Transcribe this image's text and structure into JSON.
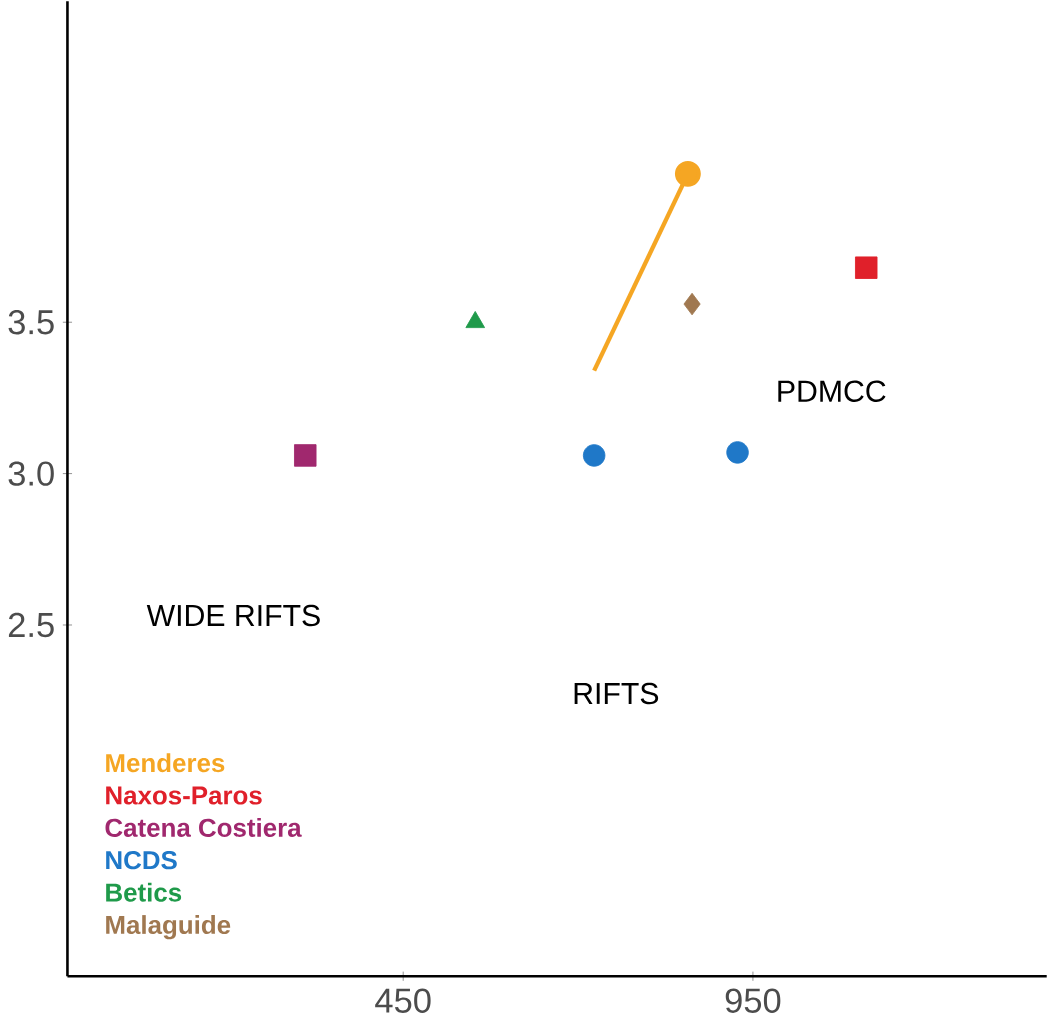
{
  "chart_data": {
    "type": "scatter",
    "xlim": [
      -30,
      1370
    ],
    "ylim": [
      1.34,
      4.56
    ],
    "xticks": [
      450,
      950
    ],
    "yticks": [
      2.5,
      {
        "value": 3.0,
        "label": "3.0"
      },
      3.5
    ],
    "series": [
      {
        "name": "Menderes",
        "color": "#f5a623",
        "type": "line",
        "x": [
          723,
          857
        ],
        "values": [
          3.34,
          3.99
        ],
        "marker": "circle"
      },
      {
        "name": "Naxos-Paros",
        "color": "#e0202a",
        "x": [
          1112
        ],
        "values": [
          3.68
        ],
        "marker": "square"
      },
      {
        "name": "Catena Costiera",
        "color": "#a0286e",
        "x": [
          310
        ],
        "values": [
          3.06
        ],
        "marker": "square"
      },
      {
        "name": "NCDS",
        "color": "#1f78c8",
        "x": [
          723,
          928
        ],
        "values": [
          3.06,
          3.07
        ],
        "marker": "circle"
      },
      {
        "name": "Betics",
        "color": "#1f9a4a",
        "x": [
          553
        ],
        "values": [
          3.5
        ],
        "marker": "triangle"
      },
      {
        "name": "Malaguide",
        "color": "#a07850",
        "x": [
          863
        ],
        "values": [
          3.56
        ],
        "marker": "diamond"
      }
    ],
    "annotations": [
      "PDMCC",
      "WIDE RIFTS",
      "RIFTS"
    ],
    "legend": "bottom left"
  }
}
